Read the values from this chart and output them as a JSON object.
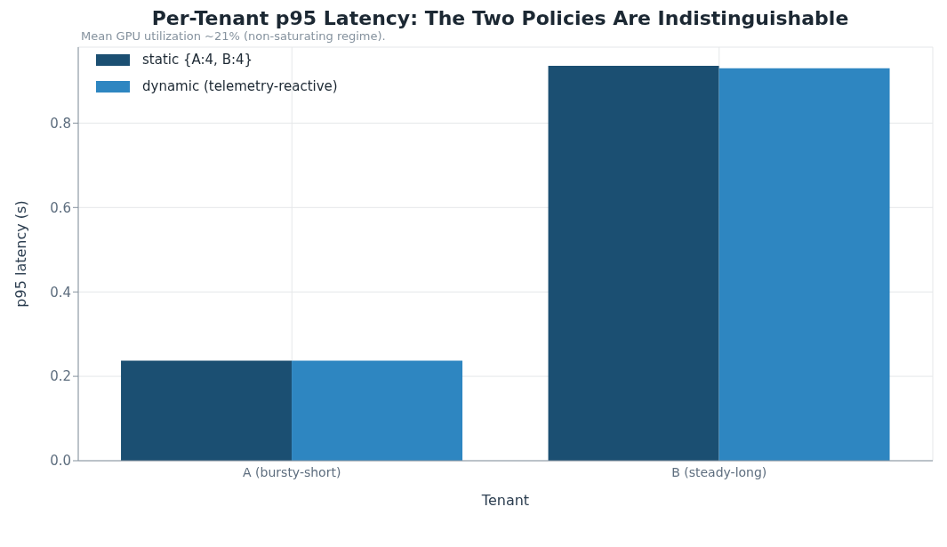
{
  "chart_data": {
    "type": "bar",
    "title": "Per-Tenant p95 Latency: The Two Policies Are Indistinguishable",
    "subtitle": "Mean GPU utilization ~21% (non-saturating regime).",
    "xlabel": "Tenant",
    "ylabel": "p95 latency (s)",
    "categories": [
      "A (bursty-short)",
      "B (steady-long)"
    ],
    "series": [
      {
        "name": "static {A:4, B:4}",
        "color": "#1b4f72",
        "values": [
          0.237,
          0.936
        ]
      },
      {
        "name": "dynamic (telemetry-reactive)",
        "color": "#2e86c1",
        "values": [
          0.237,
          0.93
        ]
      }
    ],
    "ylim": [
      0,
      0.98
    ],
    "yticks": [
      {
        "value": 0,
        "label": "0.0"
      },
      {
        "value": 0.2,
        "label": "0.2"
      },
      {
        "value": 0.4,
        "label": "0.4"
      },
      {
        "value": 0.6,
        "label": "0.6"
      },
      {
        "value": 0.8,
        "label": "0.8"
      }
    ],
    "grid": true,
    "legend": "top left"
  }
}
